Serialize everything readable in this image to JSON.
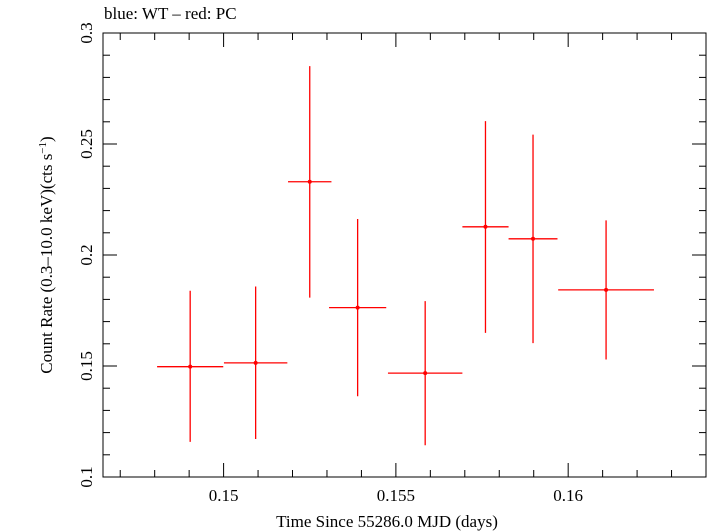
{
  "chart_data": {
    "type": "scatter",
    "title": "blue: WT – red: PC",
    "xlabel": "Time Since 55286.0 MJD (days)",
    "ylabel_main": "Count Rate (0.3–10.0 keV)(cts s",
    "ylabel_sup": "−1",
    "ylabel_tail": ")",
    "xlim": [
      0.1465,
      0.164
    ],
    "ylim": [
      0.1,
      0.3
    ],
    "x_ticks": [
      0.15,
      0.155,
      0.16
    ],
    "x_tick_labels": [
      "0.15",
      "0.155",
      "0.16"
    ],
    "y_ticks": [
      0.1,
      0.15,
      0.2,
      0.25,
      0.3
    ],
    "y_tick_labels": [
      "0.1",
      "0.15",
      "0.2",
      "0.25",
      "0.3"
    ],
    "series": [
      {
        "color": "#ff0000",
        "points": [
          {
            "x": 0.14903,
            "xerr": 0.00096,
            "y": 0.1497,
            "yerr_lo": 0.0339,
            "yerr_hi": 0.0342
          },
          {
            "x": 0.14903,
            "xerr": 0.0,
            "y": 0.1497,
            "yerr_lo": 0.0,
            "yerr_hi": 0.0
          },
          {
            "x": 0.15093,
            "xerr": 0.00092,
            "y": 0.1514,
            "yerr_lo": 0.0343,
            "yerr_hi": 0.0344
          },
          {
            "x": 0.1525,
            "xerr": 0.00063,
            "y": 0.233,
            "yerr_lo": 0.0522,
            "yerr_hi": 0.0521
          },
          {
            "x": 0.15389,
            "xerr": 0.00083,
            "y": 0.1763,
            "yerr_lo": 0.0399,
            "yerr_hi": 0.0399
          },
          {
            "x": 0.15585,
            "xerr": 0.00108,
            "y": 0.1468,
            "yerr_lo": 0.0325,
            "yerr_hi": 0.0324
          },
          {
            "x": 0.1576,
            "xerr": 0.00067,
            "y": 0.2127,
            "yerr_lo": 0.0478,
            "yerr_hi": 0.0476
          },
          {
            "x": 0.15898,
            "xerr": 0.00071,
            "y": 0.2073,
            "yerr_lo": 0.047,
            "yerr_hi": 0.0469
          },
          {
            "x": 0.1611,
            "xerr": 0.00139,
            "y": 0.1843,
            "yerr_lo": 0.0314,
            "yerr_hi": 0.0313
          }
        ]
      }
    ]
  }
}
